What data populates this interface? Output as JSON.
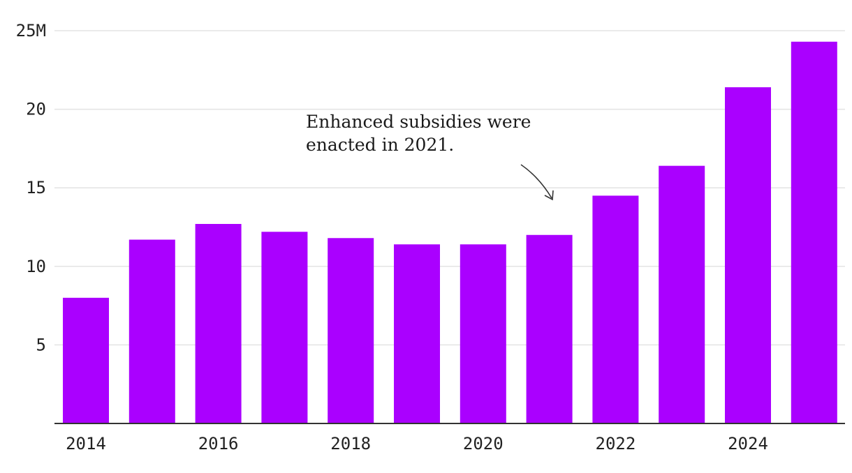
{
  "chart_data": {
    "type": "bar",
    "title": "",
    "xlabel": "",
    "ylabel": "",
    "categories": [
      "2014",
      "2015",
      "2016",
      "2017",
      "2018",
      "2019",
      "2020",
      "2021",
      "2022",
      "2023",
      "2024",
      "2025"
    ],
    "values": [
      8.0,
      11.7,
      12.7,
      12.2,
      11.8,
      11.4,
      11.4,
      12.0,
      14.5,
      16.4,
      21.4,
      24.3
    ],
    "ylim": [
      0,
      25
    ],
    "y_ticks": [
      {
        "value": 5,
        "label": "5"
      },
      {
        "value": 10,
        "label": "10"
      },
      {
        "value": 15,
        "label": "15"
      },
      {
        "value": 20,
        "label": "20"
      },
      {
        "value": 25,
        "label": "25M"
      }
    ],
    "x_tick_labels": [
      "2014",
      "2016",
      "2018",
      "2020",
      "2022",
      "2024"
    ],
    "bar_color": "#aa00ff",
    "grid": true,
    "annotation": {
      "lines": [
        "Enhanced subsidies were",
        "enacted in 2021."
      ],
      "target_category": "2021"
    }
  }
}
